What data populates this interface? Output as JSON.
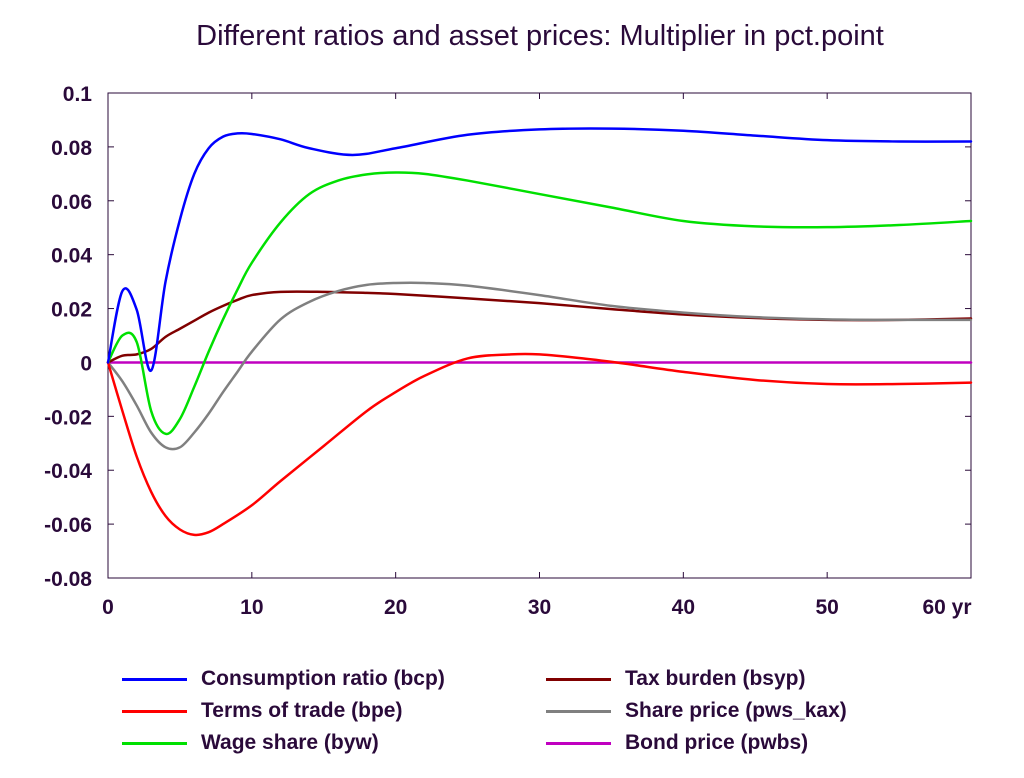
{
  "chart_data": {
    "type": "line",
    "title": "Different ratios and asset prices: Multiplier in pct.point",
    "xlabel": "",
    "ylabel": "",
    "x_unit_label": "yr",
    "xlim": [
      0,
      60
    ],
    "ylim": [
      -0.08,
      0.1
    ],
    "x_ticks": [
      0,
      10,
      20,
      30,
      40,
      50,
      60
    ],
    "x_tick_labels": [
      "0",
      "10",
      "20",
      "30",
      "40",
      "50",
      "60 yr"
    ],
    "y_ticks": [
      0.1,
      0.08,
      0.06,
      0.04,
      0.02,
      0,
      -0.02,
      -0.04,
      -0.06,
      -0.08
    ],
    "y_tick_labels": [
      "0.1",
      "0.08",
      "0.06",
      "0.04",
      "0.02",
      "0",
      "-0.02",
      "-0.04",
      "-0.06",
      "-0.08"
    ],
    "grid": false,
    "legend_position": "bottom",
    "series": [
      {
        "name": "Consumption ratio (bcp)",
        "color": "#0000ff",
        "x": [
          0,
          1,
          2,
          3,
          4,
          5,
          6,
          7,
          8,
          9,
          10,
          12,
          14,
          17,
          20,
          25,
          30,
          35,
          40,
          45,
          50,
          55,
          60
        ],
        "y": [
          0,
          0.0265,
          0.0195,
          -0.003,
          0.03,
          0.053,
          0.07,
          0.0795,
          0.0838,
          0.085,
          0.0848,
          0.0828,
          0.0795,
          0.077,
          0.0795,
          0.0845,
          0.0865,
          0.0868,
          0.086,
          0.0842,
          0.0825,
          0.082,
          0.082
        ]
      },
      {
        "name": "Terms of trade (bpe)",
        "color": "#ff0000",
        "x": [
          0,
          1,
          2,
          3,
          4,
          5,
          6,
          7,
          8,
          10,
          12,
          15,
          18,
          20,
          22,
          25,
          28,
          30,
          33,
          36,
          40,
          45,
          50,
          55,
          60
        ],
        "y": [
          0,
          -0.018,
          -0.035,
          -0.048,
          -0.057,
          -0.062,
          -0.064,
          -0.063,
          -0.06,
          -0.053,
          -0.044,
          -0.031,
          -0.018,
          -0.011,
          -0.005,
          0.0015,
          0.003,
          0.003,
          0.0015,
          -0.0005,
          -0.0035,
          -0.0065,
          -0.008,
          -0.008,
          -0.0075
        ]
      },
      {
        "name": "Wage share (byw)",
        "color": "#00e000",
        "x": [
          0,
          1,
          2,
          3,
          4,
          5,
          6,
          7,
          8,
          9,
          10,
          12,
          14,
          16,
          18,
          20,
          22,
          25,
          30,
          35,
          40,
          45,
          50,
          55,
          60
        ],
        "y": [
          0,
          0.01,
          0.0075,
          -0.018,
          -0.0265,
          -0.021,
          -0.009,
          0.004,
          0.016,
          0.027,
          0.037,
          0.052,
          0.0625,
          0.0675,
          0.0698,
          0.0705,
          0.07,
          0.0675,
          0.0625,
          0.0575,
          0.0525,
          0.0505,
          0.0502,
          0.051,
          0.0525
        ]
      },
      {
        "name": "Tax burden (bsyp)",
        "color": "#800000",
        "x": [
          0,
          1,
          2,
          3,
          4,
          5,
          6,
          7,
          8,
          9,
          10,
          12,
          15,
          18,
          20,
          25,
          30,
          35,
          40,
          45,
          50,
          55,
          60
        ],
        "y": [
          0,
          0.0025,
          0.003,
          0.005,
          0.0095,
          0.0125,
          0.0155,
          0.0185,
          0.021,
          0.0232,
          0.025,
          0.0262,
          0.0262,
          0.0258,
          0.0254,
          0.0238,
          0.022,
          0.0198,
          0.0178,
          0.0165,
          0.0158,
          0.0158,
          0.0163
        ]
      },
      {
        "name": "Share price (pws_kax)",
        "color": "#808080",
        "x": [
          0,
          1,
          2,
          3,
          4,
          5,
          6,
          7,
          8,
          9,
          10,
          12,
          14,
          16,
          18,
          20,
          22,
          25,
          30,
          35,
          40,
          45,
          50,
          55,
          60
        ],
        "y": [
          0,
          -0.007,
          -0.016,
          -0.026,
          -0.0315,
          -0.0315,
          -0.026,
          -0.019,
          -0.011,
          -0.0035,
          0.004,
          0.016,
          0.0225,
          0.0265,
          0.0288,
          0.0295,
          0.0295,
          0.0285,
          0.025,
          0.021,
          0.0185,
          0.0168,
          0.016,
          0.0158,
          0.0158
        ]
      },
      {
        "name": "Bond price (pwbs)",
        "color": "#c000c0",
        "x": [
          0,
          60
        ],
        "y": [
          0,
          0
        ]
      }
    ]
  }
}
